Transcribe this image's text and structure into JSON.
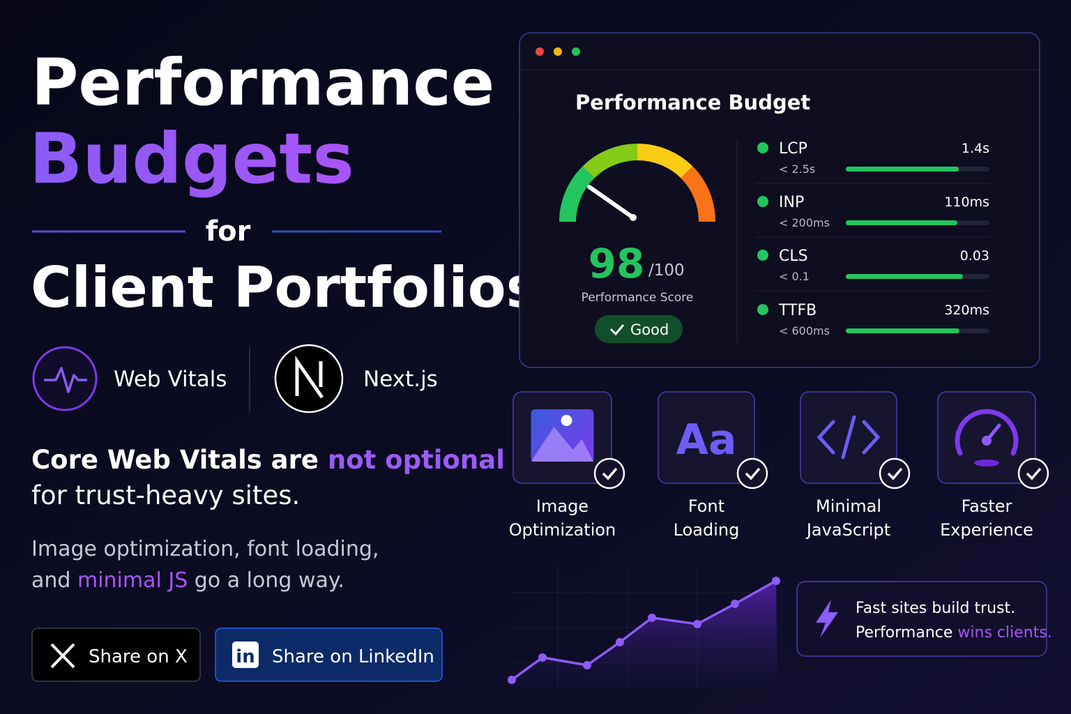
{
  "hero": {
    "line1": "Performance",
    "line2": "Budgets",
    "connector": "for",
    "line3": "Client Portfolios"
  },
  "badges": [
    "Web Vitals",
    "Next.js"
  ],
  "tagline": {
    "before": "Core Web Vitals are ",
    "highlight": "not optional",
    "after": "for trust-heavy sites."
  },
  "description": {
    "line1": "Image optimization, font loading,",
    "before": "and ",
    "highlight": "minimal JS",
    "after": " go a long way."
  },
  "buttons": {
    "x": "Share on X",
    "linkedin_icon": "in",
    "linkedin": "Share on LinkedIn"
  },
  "dashboard": {
    "title": "Performance Budget",
    "score": 98,
    "score_max": "/100",
    "score_label": "Performance Score",
    "status": "Good",
    "metrics": [
      {
        "name": "LCP",
        "target": "< 2.5s",
        "value": "1.4s"
      },
      {
        "name": "INP",
        "target": "< 200ms",
        "value": "110ms"
      },
      {
        "name": "CLS",
        "target": "< 0.1",
        "value": "0.03"
      },
      {
        "name": "TTFB",
        "target": "< 600ms",
        "value": "320ms"
      }
    ]
  },
  "features": [
    {
      "line1": "Image",
      "line2": "Optimization"
    },
    {
      "icon": "Aa",
      "line1": "Font",
      "line2": "Loading"
    },
    {
      "line1": "Minimal",
      "line2": "JavaScript"
    },
    {
      "line1": "Faster",
      "line2": "Experience"
    }
  ],
  "callout": {
    "line1": "Fast sites build trust.",
    "before": "Performance ",
    "highlight": "wins clients."
  }
}
